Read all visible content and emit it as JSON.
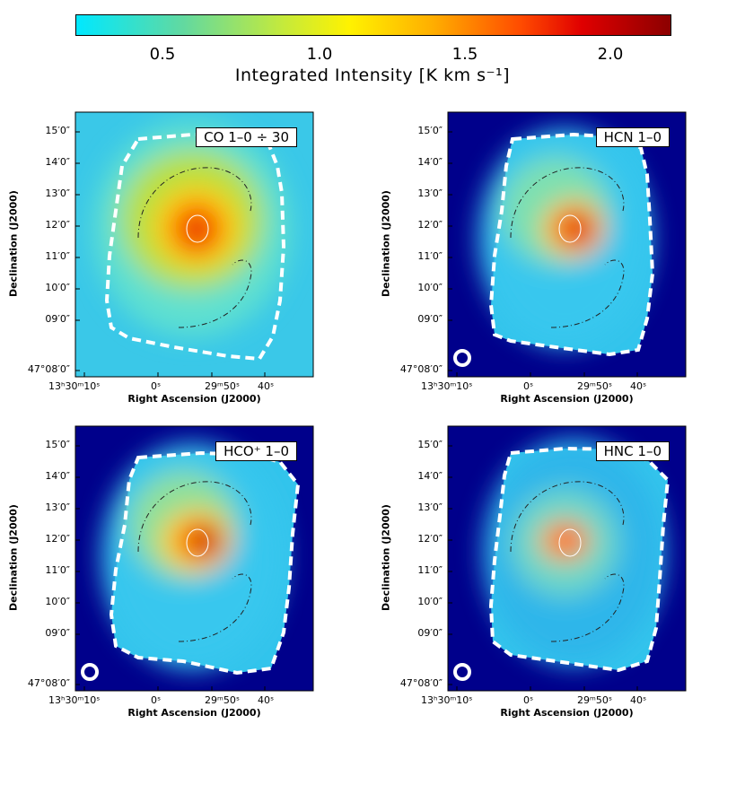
{
  "colorbar": {
    "ticks": [
      "0.5",
      "1.0",
      "1.5",
      "2.0"
    ],
    "label": "Integrated Intensity [K km s⁻¹]"
  },
  "axes": {
    "ylabel": "Declination (J2000)",
    "xlabel": "Right Ascension (J2000)",
    "yticks": [
      "15′0″",
      "14′0″",
      "13′0″",
      "12′0″",
      "11′0″",
      "10′0″",
      "09′0″",
      "47°08′0″"
    ],
    "xticks": [
      "13ʰ30ᵐ10ˢ",
      "0ˢ",
      "29ᵐ50ˢ",
      "40ˢ"
    ]
  },
  "panels": [
    {
      "title": "CO 1–0 ÷ 30"
    },
    {
      "title": "HCN 1–0"
    },
    {
      "title": "HCO⁺ 1–0"
    },
    {
      "title": "HNC 1–0"
    }
  ]
}
